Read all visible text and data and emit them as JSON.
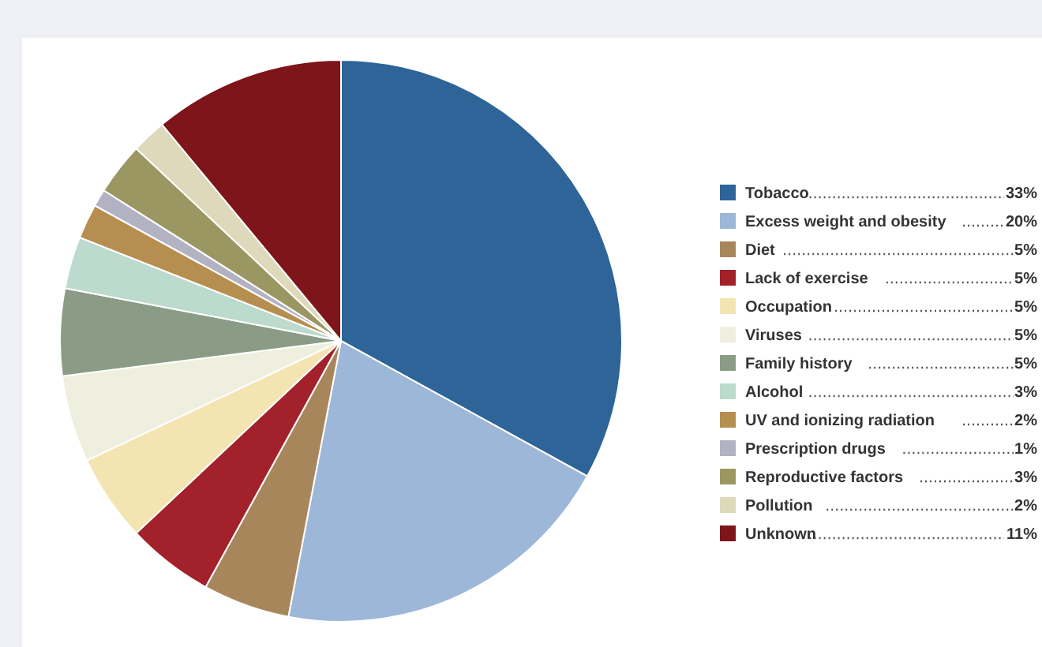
{
  "chart_data": {
    "type": "pie",
    "categories": [
      "Tobacco",
      "Excess weight and obesity",
      "Diet",
      "Lack of exercise",
      "Occupation",
      "Viruses",
      "Family history",
      "Alcohol",
      "UV and ionizing radiation",
      "Prescription drugs",
      "Reproductive factors",
      "Pollution",
      "Unknown"
    ],
    "values": [
      33,
      20,
      5,
      5,
      5,
      5,
      5,
      3,
      2,
      1,
      3,
      2,
      11
    ],
    "colors": [
      "#2e6497",
      "#9db7d9",
      "#a8865c",
      "#a3212b",
      "#f4e4b2",
      "#efefdf",
      "#8b9c86",
      "#bcdacd",
      "#b58e50",
      "#b2b2c2",
      "#9b9762",
      "#ddd9ba",
      "#7e151a"
    ],
    "value_labels": [
      "33%",
      "20%",
      "5%",
      "5%",
      "5%",
      "5%",
      "5%",
      "3%",
      "2%",
      "1%",
      "3%",
      "2%",
      "11%"
    ],
    "legend": "right"
  }
}
